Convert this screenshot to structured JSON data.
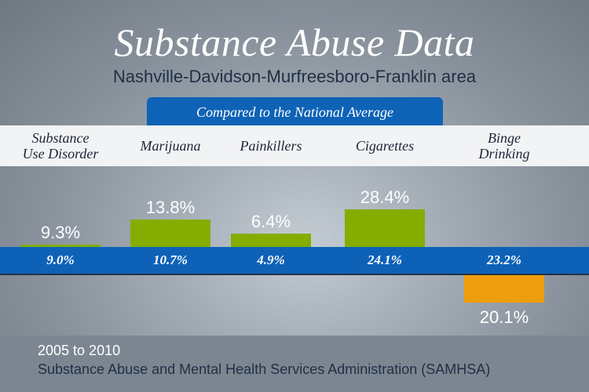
{
  "header": {
    "title": "Substance Abuse Data",
    "subtitle": "Nashville-Davidson-Murfreesboro-Franklin area",
    "badge": "Compared to the National Average"
  },
  "chart_data": {
    "type": "bar",
    "categories": [
      "Substance\nUse Disorder",
      "Marijuana",
      "Painkillers",
      "Cigarettes",
      "Binge\nDrinking"
    ],
    "series": [
      {
        "values": [
          9.3,
          13.8,
          6.4,
          28.4,
          20.1
        ],
        "labels": [
          "9.3%",
          "13.8%",
          "6.4%",
          "28.4%",
          "20.1%"
        ]
      },
      {
        "values": [
          9.0,
          10.7,
          4.9,
          24.1,
          23.2
        ],
        "labels": [
          "9.0%",
          "10.7%",
          "4.9%",
          "24.1%",
          "23.2%"
        ]
      }
    ],
    "colors": {
      "above": "#84ad00",
      "below": "#ee9d0d",
      "national": "#0d62b8"
    }
  },
  "footer": {
    "years": "2005 to 2010",
    "source": "Substance Abuse and Mental Health Services Administration (SAMHSA)"
  }
}
